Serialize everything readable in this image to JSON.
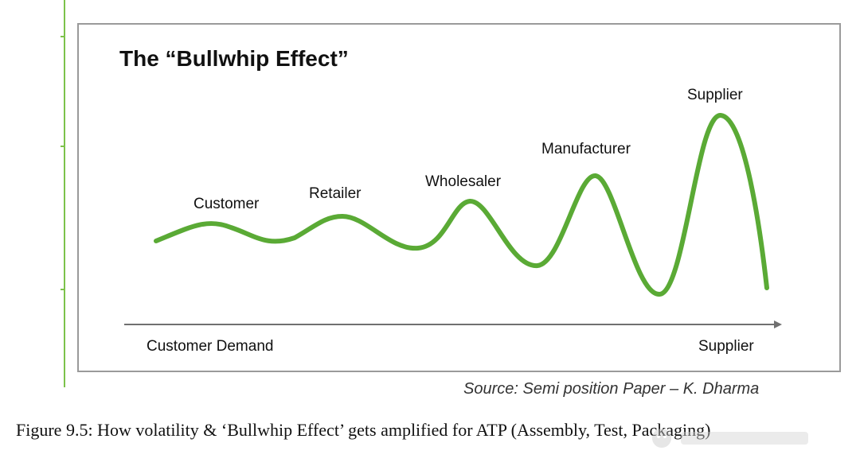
{
  "diagram": {
    "title": "The “Bullwhip Effect”",
    "stages": [
      {
        "id": "customer",
        "label": "Customer"
      },
      {
        "id": "retailer",
        "label": "Retailer"
      },
      {
        "id": "wholesaler",
        "label": "Wholesaler"
      },
      {
        "id": "manufacturer",
        "label": "Manufacturer"
      },
      {
        "id": "supplier",
        "label": "Supplier"
      }
    ],
    "axis": {
      "left_label": "Customer Demand",
      "right_label": "Supplier"
    },
    "colors": {
      "wave": "#5aaa35",
      "axis": "#707070",
      "frame": "#9a9a9a",
      "side_rule": "#7cc24a"
    }
  },
  "source": "Source: Semi position Paper – K. Dharma",
  "caption": "Figure 9.5: How volatility & ‘Bullwhip Effect’ gets amplified for ATP (Assembly, Test, Packaging)"
}
